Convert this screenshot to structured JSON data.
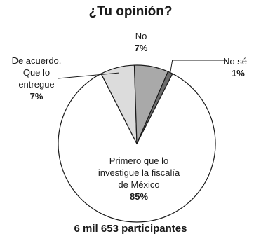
{
  "chart_data": {
    "type": "pie",
    "title": "¿Tu opinión?",
    "slices": [
      {
        "name": "Primero que lo investigue la fiscalía de México",
        "label_lines": [
          "Primero que lo",
          "investigue la fiscalía",
          "de México"
        ],
        "value": 85,
        "value_label": "85%",
        "color": "#ffffff"
      },
      {
        "name": "De acuerdo. Que lo entregue",
        "label_lines": [
          "De acuerdo.",
          "Que lo",
          "entregue"
        ],
        "value": 7,
        "value_label": "7%",
        "color": "#dcdcdc"
      },
      {
        "name": "No",
        "label_lines": [
          "No"
        ],
        "value": 7,
        "value_label": "7%",
        "color": "#a9a9a9"
      },
      {
        "name": "No sé",
        "label_lines": [
          "No sé"
        ],
        "value": 1,
        "value_label": "1%",
        "color": "#6b6b6b"
      }
    ],
    "footer": "6 mil 653 participantes"
  }
}
